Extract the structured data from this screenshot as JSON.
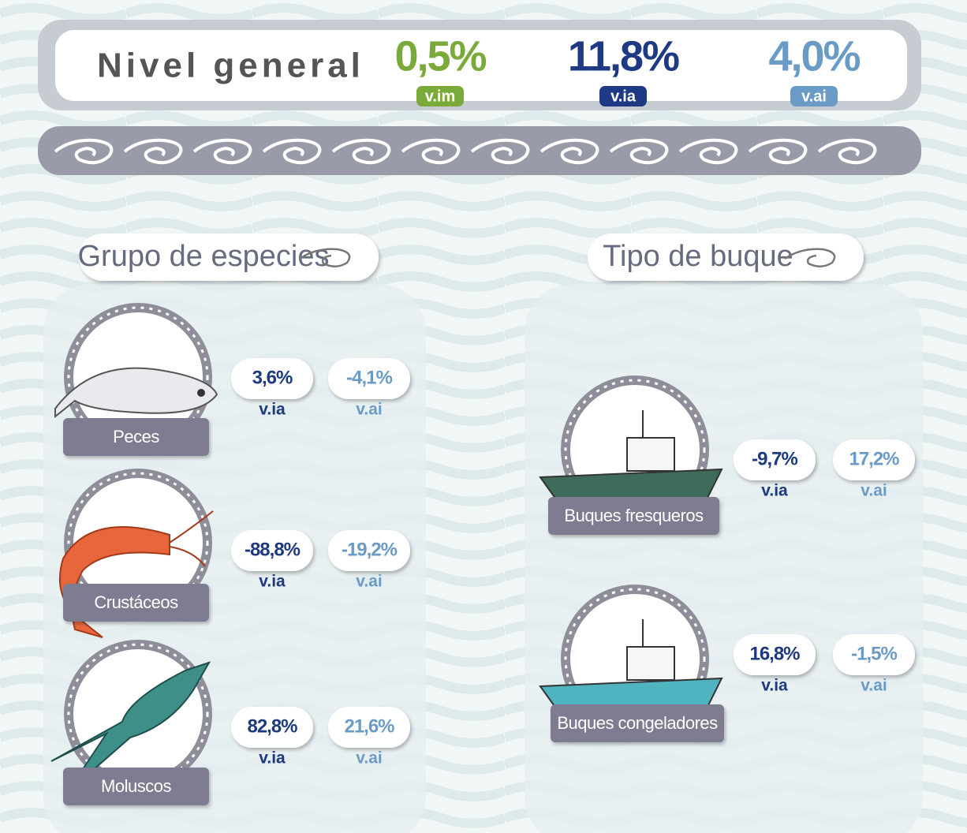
{
  "header": {
    "title": "Nivel general",
    "metrics": [
      {
        "value": "0,5%",
        "label": "v.im"
      },
      {
        "value": "11,8%",
        "label": "v.ia"
      },
      {
        "value": "4,0%",
        "label": "v.ai"
      }
    ]
  },
  "sections": [
    {
      "title": "Grupo de especies",
      "items": [
        {
          "name": "Peces",
          "via": "3,6%",
          "via_label": "v.ia",
          "vai": "-4,1%",
          "vai_label": "v.ai"
        },
        {
          "name": "Crustáceos",
          "via": "-88,8%",
          "via_label": "v.ia",
          "vai": "-19,2%",
          "vai_label": "v.ai"
        },
        {
          "name": "Moluscos",
          "via": "82,8%",
          "via_label": "v.ia",
          "vai": "21,6%",
          "vai_label": "v.ai"
        }
      ]
    },
    {
      "title": "Tipo de buque",
      "items": [
        {
          "name": "Buques fresqueros",
          "via": "-9,7%",
          "via_label": "v.ia",
          "vai": "17,2%",
          "vai_label": "v.ai"
        },
        {
          "name": "Buques congeladores",
          "via": "16,8%",
          "via_label": "v.ia",
          "vai": "-1,5%",
          "vai_label": "v.ai"
        }
      ]
    }
  ]
}
